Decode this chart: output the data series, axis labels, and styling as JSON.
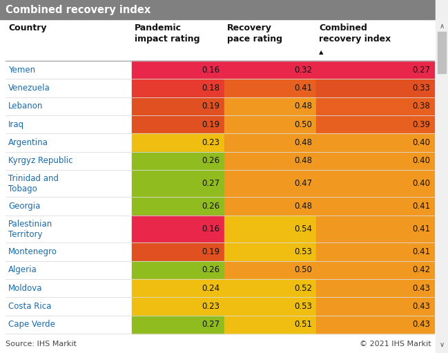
{
  "title": "Combined recovery index",
  "title_bg": "#808080",
  "title_color": "#ffffff",
  "source_text": "Source: IHS Markit",
  "copyright_text": "© 2021 IHS Markit",
  "columns": [
    "Country",
    "Pandemic\nimpact rating",
    "Recovery\npace rating",
    "Combined\nrecovery index"
  ],
  "rows": [
    {
      "country": "Yemen",
      "pandemic": 0.16,
      "recovery": 0.32,
      "combined": 0.27
    },
    {
      "country": "Venezuela",
      "pandemic": 0.18,
      "recovery": 0.41,
      "combined": 0.33
    },
    {
      "country": "Lebanon",
      "pandemic": 0.19,
      "recovery": 0.48,
      "combined": 0.38
    },
    {
      "country": "Iraq",
      "pandemic": 0.19,
      "recovery": 0.5,
      "combined": 0.39
    },
    {
      "country": "Argentina",
      "pandemic": 0.23,
      "recovery": 0.48,
      "combined": 0.4
    },
    {
      "country": "Kyrgyz Republic",
      "pandemic": 0.26,
      "recovery": 0.48,
      "combined": 0.4
    },
    {
      "country": "Trinidad and\nTobago",
      "pandemic": 0.27,
      "recovery": 0.47,
      "combined": 0.4
    },
    {
      "country": "Georgia",
      "pandemic": 0.26,
      "recovery": 0.48,
      "combined": 0.41
    },
    {
      "country": "Palestinian\nTerritory",
      "pandemic": 0.16,
      "recovery": 0.54,
      "combined": 0.41
    },
    {
      "country": "Montenegro",
      "pandemic": 0.19,
      "recovery": 0.53,
      "combined": 0.41
    },
    {
      "country": "Algeria",
      "pandemic": 0.26,
      "recovery": 0.5,
      "combined": 0.42
    },
    {
      "country": "Moldova",
      "pandemic": 0.24,
      "recovery": 0.52,
      "combined": 0.43
    },
    {
      "country": "Costa Rica",
      "pandemic": 0.23,
      "recovery": 0.53,
      "combined": 0.43
    },
    {
      "country": "Cape Verde",
      "pandemic": 0.27,
      "recovery": 0.51,
      "combined": 0.43
    }
  ],
  "pandemic_colors": {
    "0.16": "#E8274B",
    "0.18": "#E63B2E",
    "0.19": "#E05020",
    "0.23": "#F0BE10",
    "0.24": "#F0BE10",
    "0.26": "#90BC20",
    "0.27": "#90BC20"
  },
  "recovery_colors": {
    "0.32": "#E8274B",
    "0.41": "#E86020",
    "0.47": "#F09820",
    "0.48": "#F09820",
    "0.50": "#F09820",
    "0.51": "#F0BE10",
    "0.52": "#F0BE10",
    "0.53": "#F0BE10",
    "0.54": "#F0BE10"
  },
  "combined_colors": {
    "0.27": "#E8274B",
    "0.33": "#E05020",
    "0.38": "#E86020",
    "0.39": "#E86020",
    "0.40": "#F09820",
    "0.41": "#F09820",
    "0.42": "#F09820",
    "0.43": "#F09820"
  },
  "bg_color": "#ffffff",
  "country_color": "#1a6aaa",
  "header_color": "#111111",
  "figsize": [
    6.49,
    5.11
  ],
  "dpi": 100
}
